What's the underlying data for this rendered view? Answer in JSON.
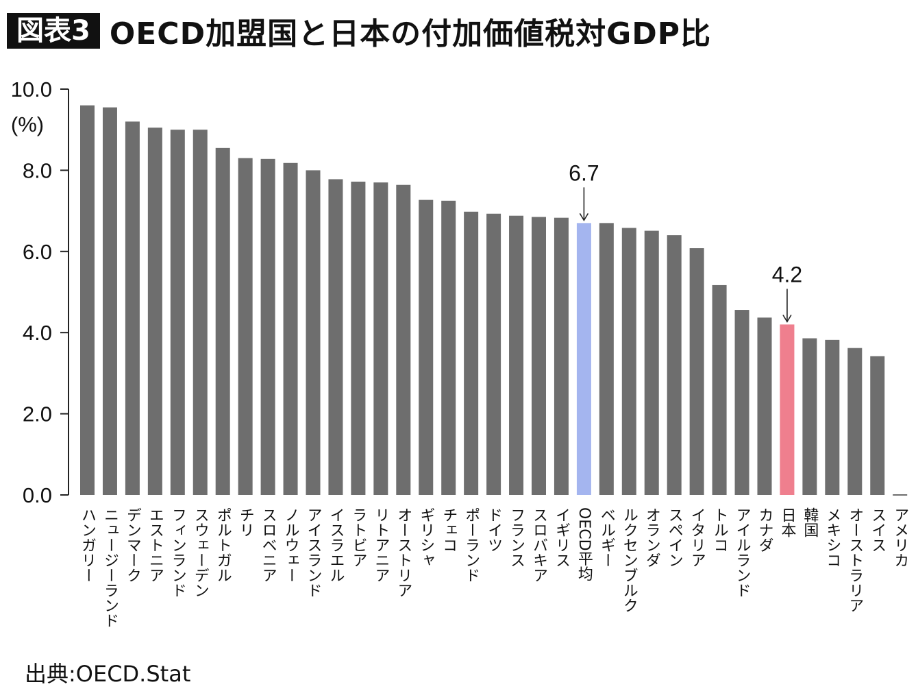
{
  "header": {
    "figure_label": "図表3",
    "title": "OECD加盟国と日本の付加価値税対GDP比"
  },
  "source": "出典:OECD.Stat",
  "colors": {
    "bar": "#6e6e6e",
    "oecd_average": "#a4b5ef",
    "japan": "#ef7f8e",
    "axis": "#222222"
  },
  "chart_data": {
    "type": "bar",
    "title": "OECD加盟国と日本の付加価値税対GDP比",
    "ylabel": "(%)",
    "ylim": [
      0,
      10
    ],
    "yticks": [
      "0.0",
      "2.0",
      "4.0",
      "6.0",
      "8.0",
      "10.0"
    ],
    "grid": false,
    "categories": [
      "ハンガリー",
      "ニュージーランド",
      "デンマーク",
      "エストニア",
      "フィンランド",
      "スウェーデン",
      "ポルトガル",
      "チリ",
      "スロベニア",
      "ノルウェー",
      "アイスランド",
      "イスラエル",
      "ラトビア",
      "リトアニア",
      "オーストリア",
      "ギリシャ",
      "チェコ",
      "ポーランド",
      "ドイツ",
      "フランス",
      "スロバキア",
      "イギリス",
      "OECD平均",
      "ベルギー",
      "ルクセンブルク",
      "オランダ",
      "スペイン",
      "イタリア",
      "トルコ",
      "アイルランド",
      "カナダ",
      "日本",
      "韓国",
      "メキシコ",
      "オーストラリア",
      "スイス",
      "アメリカ"
    ],
    "values": [
      9.6,
      9.55,
      9.2,
      9.05,
      9.0,
      9.0,
      8.55,
      8.3,
      8.28,
      8.18,
      8.0,
      7.78,
      7.72,
      7.7,
      7.64,
      7.27,
      7.25,
      6.98,
      6.93,
      6.88,
      6.85,
      6.83,
      6.7,
      6.7,
      6.58,
      6.51,
      6.4,
      6.08,
      5.17,
      4.56,
      4.37,
      4.2,
      3.86,
      3.82,
      3.62,
      3.42,
      0
    ],
    "highlights": [
      {
        "category": "OECD平均",
        "label": "6.7"
      },
      {
        "category": "日本",
        "label": "4.2"
      }
    ]
  }
}
